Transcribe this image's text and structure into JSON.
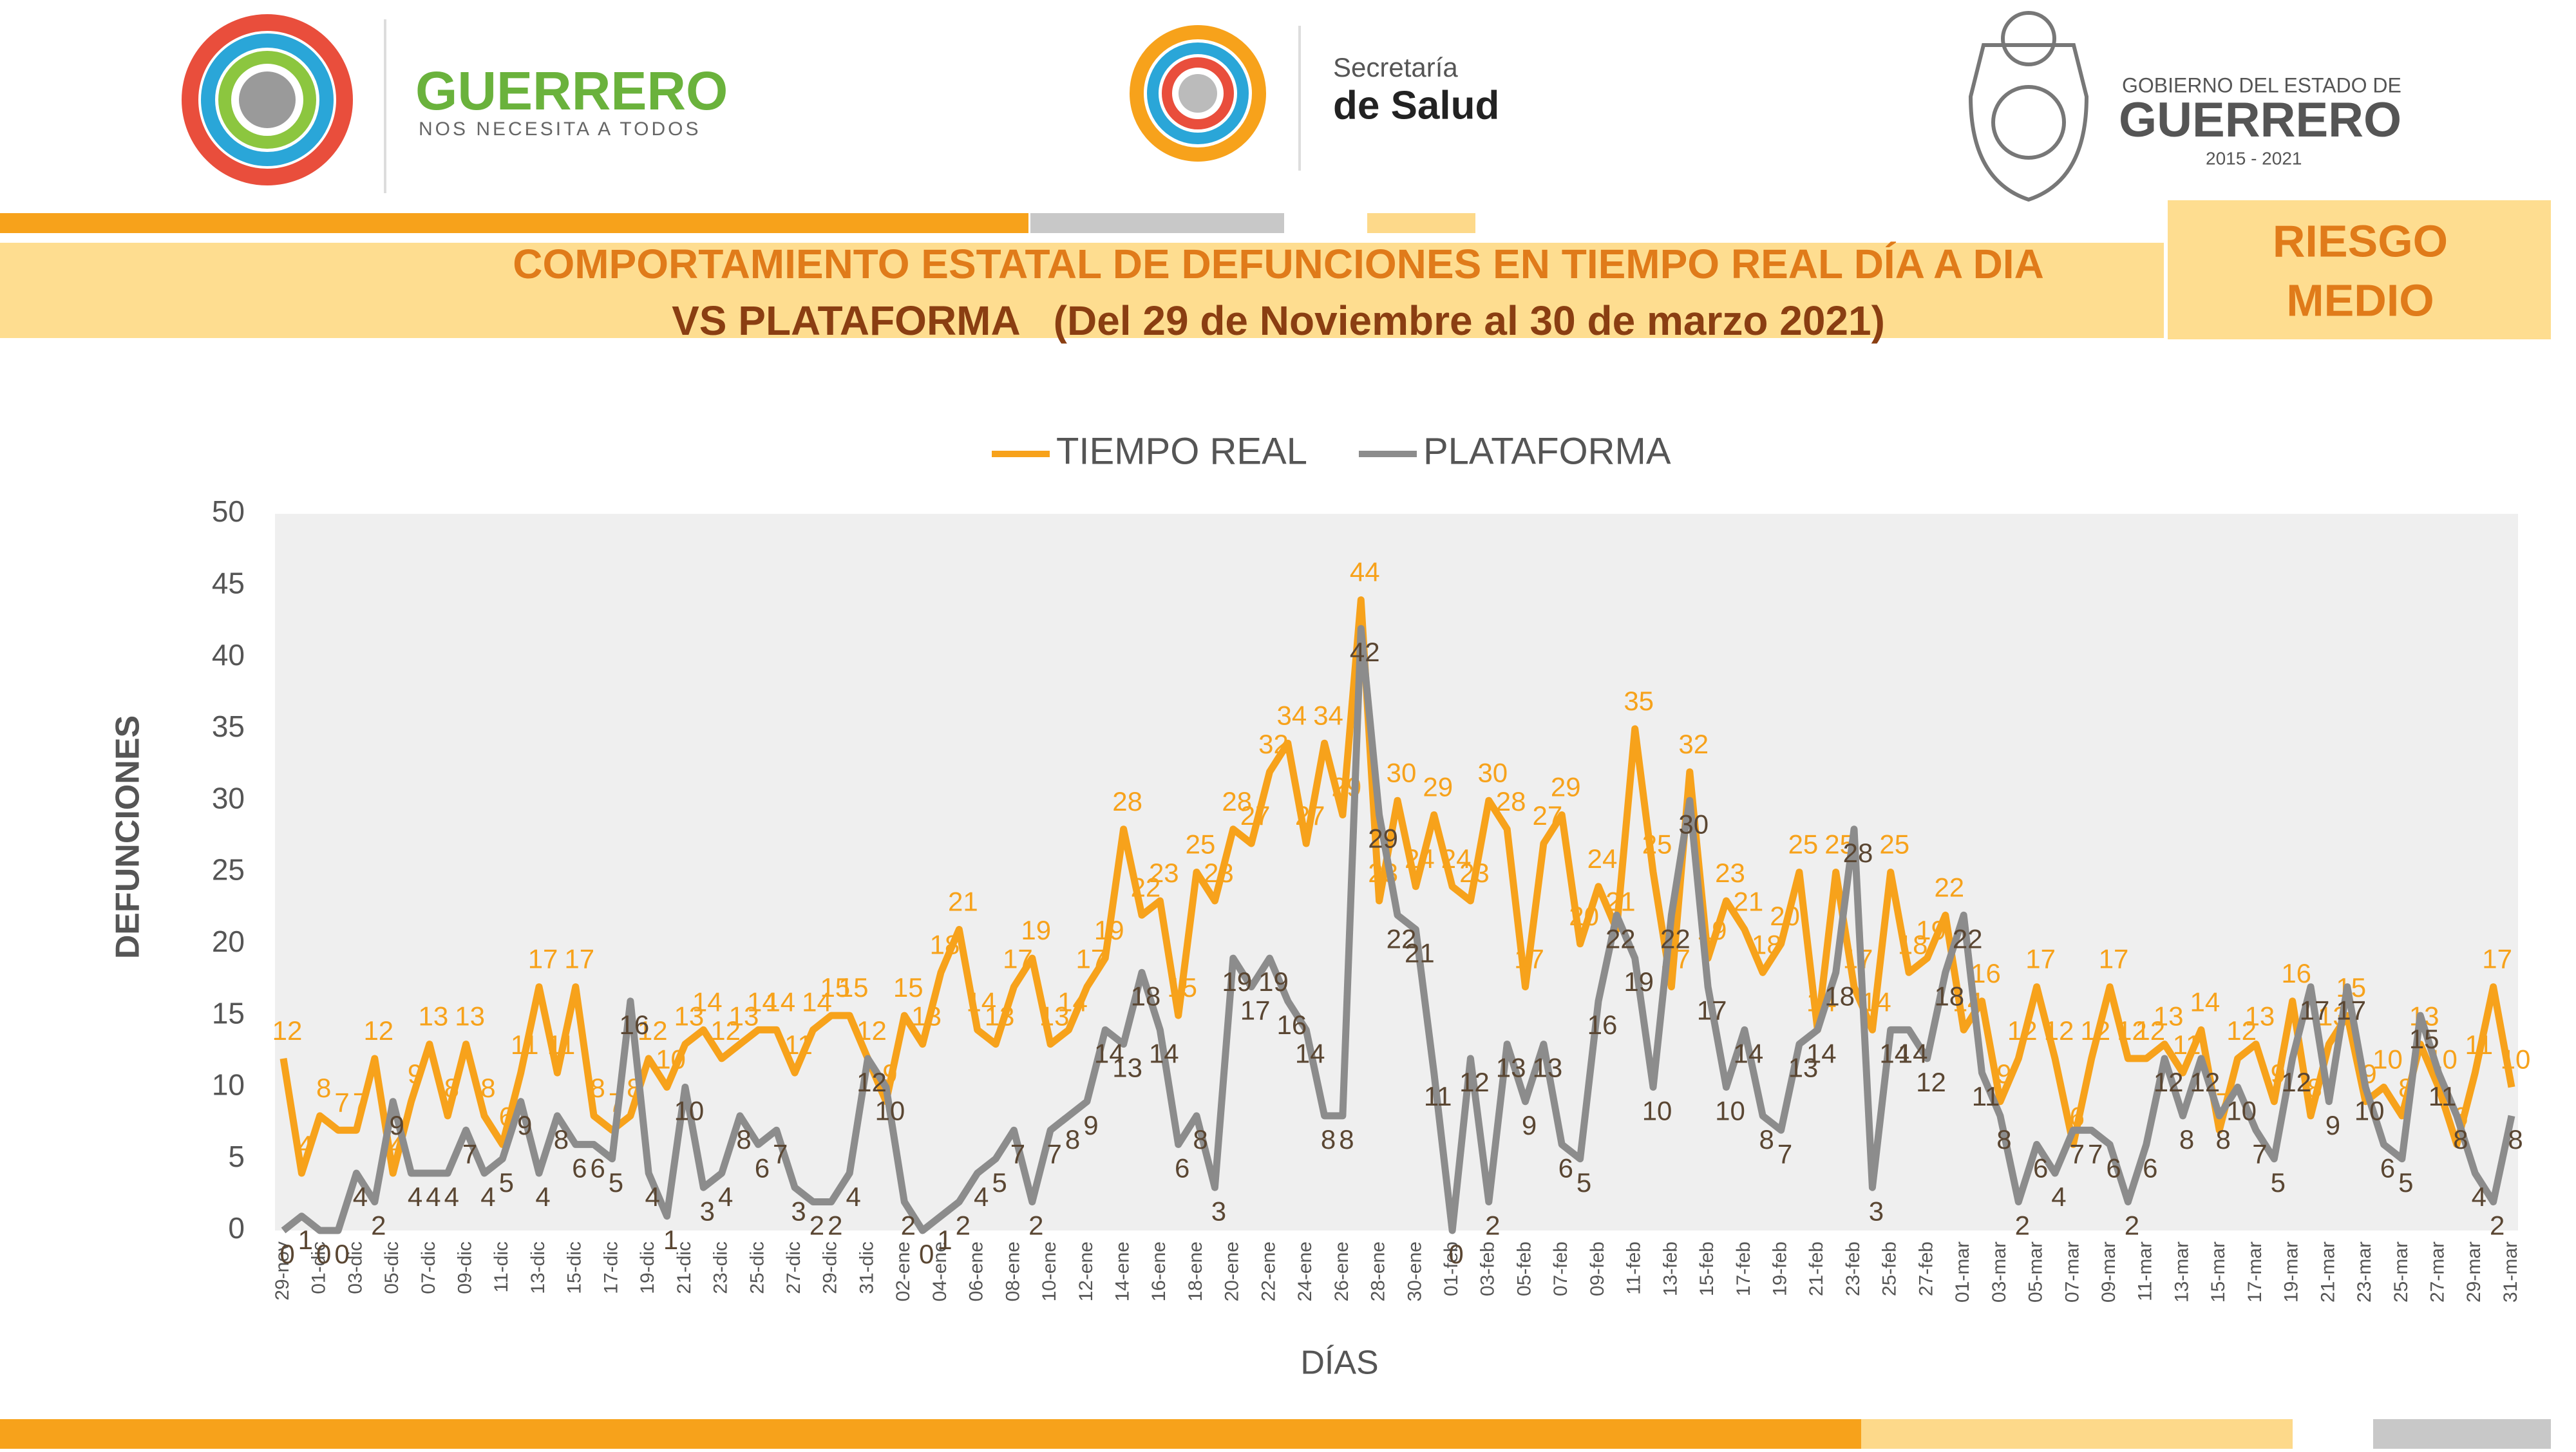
{
  "header": {
    "left_title": "GUERRERO",
    "left_sub": "NOS NECESITA A TODOS",
    "mid_top": "Secretaría",
    "mid_bottom": "de Salud",
    "right_top": "GOBIERNO DEL ESTADO DE",
    "right_title": "GUERRERO",
    "right_years": "2015 - 2021"
  },
  "risk": [
    "RIESGO",
    "MEDIO"
  ],
  "chart_data": {
    "type": "line",
    "title": "COMPORTAMIENTO ESTATAL DE DEFUNCIONES EN TIEMPO REAL DÍA A DIA",
    "subtitle": "VS PLATAFORMA   (Del 29 de Noviembre al 30 de marzo 2021)",
    "xlabel": "DÍAS",
    "ylabel": "DEFUNCIONES",
    "ylim": [
      0,
      50
    ],
    "yticks": [
      0,
      5,
      10,
      15,
      20,
      25,
      30,
      35,
      40,
      45,
      50
    ],
    "grid": false,
    "legend": "top",
    "categories": [
      "29-nov",
      null,
      "01-dic",
      null,
      "03-dic",
      null,
      "05-dic",
      null,
      "07-dic",
      null,
      "09-dic",
      null,
      "11-dic",
      null,
      "13-dic",
      null,
      "15-dic",
      null,
      "17-dic",
      null,
      "19-dic",
      null,
      "21-dic",
      null,
      "23-dic",
      null,
      "25-dic",
      null,
      "27-dic",
      null,
      "29-dic",
      null,
      "31-dic",
      null,
      "02-ene",
      null,
      "04-ene",
      null,
      "06-ene",
      null,
      "08-ene",
      null,
      "10-ene",
      null,
      "12-ene",
      null,
      "14-ene",
      null,
      "16-ene",
      null,
      "18-ene",
      null,
      "20-ene",
      null,
      "22-ene",
      null,
      "24-ene",
      null,
      "26-ene",
      null,
      "28-ene",
      null,
      "30-ene",
      null,
      "01-feb",
      null,
      "03-feb",
      null,
      "05-feb",
      null,
      "07-feb",
      null,
      "09-feb",
      null,
      "11-feb",
      null,
      "13-feb",
      null,
      "15-feb",
      null,
      "17-feb",
      null,
      "19-feb",
      null,
      "21-feb",
      null,
      "23-feb",
      null,
      "25-feb",
      null,
      "27-feb",
      null,
      "01-mar",
      null,
      "03-mar",
      null,
      "05-mar",
      null,
      "07-mar",
      null,
      "09-mar",
      null,
      "11-mar",
      null,
      "13-mar",
      null,
      "15-mar",
      null,
      "17-mar",
      null,
      "19-mar",
      null,
      "21-mar",
      null,
      "23-mar",
      null,
      "25-mar",
      null,
      "27-mar",
      null,
      "29-mar",
      null,
      "31-mar"
    ],
    "series": [
      {
        "name": "TIEMPO REAL",
        "color": "#F7A21B",
        "label_color": "#F7A21B",
        "values": [
          12,
          4,
          8,
          7,
          7,
          12,
          4,
          9,
          13,
          8,
          13,
          8,
          6,
          11,
          17,
          11,
          17,
          8,
          7,
          8,
          12,
          10,
          13,
          14,
          12,
          13,
          14,
          14,
          11,
          14,
          15,
          15,
          12,
          9,
          15,
          13,
          18,
          21,
          14,
          13,
          17,
          19,
          13,
          14,
          17,
          19,
          28,
          22,
          23,
          15,
          25,
          23,
          28,
          27,
          32,
          34,
          27,
          34,
          29,
          44,
          23,
          30,
          24,
          29,
          24,
          23,
          30,
          28,
          17,
          27,
          29,
          20,
          24,
          21,
          35,
          25,
          17,
          32,
          19,
          23,
          21,
          18,
          20,
          25,
          14,
          25,
          17,
          14,
          25,
          18,
          19,
          22,
          14,
          16,
          9,
          12,
          17,
          12,
          6,
          12,
          17,
          12,
          12,
          13,
          11,
          14,
          7,
          12,
          13,
          9,
          16,
          8,
          13,
          15,
          9,
          10,
          8,
          13,
          10,
          6,
          11,
          17,
          10
        ]
      },
      {
        "name": "PLATAFORMA",
        "color": "#8C8C8C",
        "label_color": "#5A4632",
        "values": [
          0,
          1,
          0,
          0,
          4,
          2,
          9,
          4,
          4,
          4,
          7,
          4,
          5,
          9,
          4,
          8,
          6,
          6,
          5,
          16,
          4,
          1,
          10,
          3,
          4,
          8,
          6,
          7,
          3,
          2,
          2,
          4,
          12,
          10,
          2,
          0,
          1,
          2,
          4,
          5,
          7,
          2,
          7,
          8,
          9,
          14,
          13,
          18,
          14,
          6,
          8,
          3,
          19,
          17,
          19,
          16,
          14,
          8,
          8,
          42,
          29,
          22,
          21,
          11,
          0,
          12,
          2,
          13,
          9,
          13,
          6,
          5,
          16,
          22,
          19,
          10,
          22,
          30,
          17,
          10,
          14,
          8,
          7,
          13,
          14,
          18,
          28,
          3,
          14,
          14,
          12,
          18,
          22,
          11,
          8,
          2,
          6,
          4,
          7,
          7,
          6,
          2,
          6,
          12,
          8,
          12,
          8,
          10,
          7,
          5,
          12,
          17,
          9,
          17,
          10,
          6,
          5,
          15,
          11,
          8,
          4,
          2,
          8
        ]
      }
    ]
  }
}
